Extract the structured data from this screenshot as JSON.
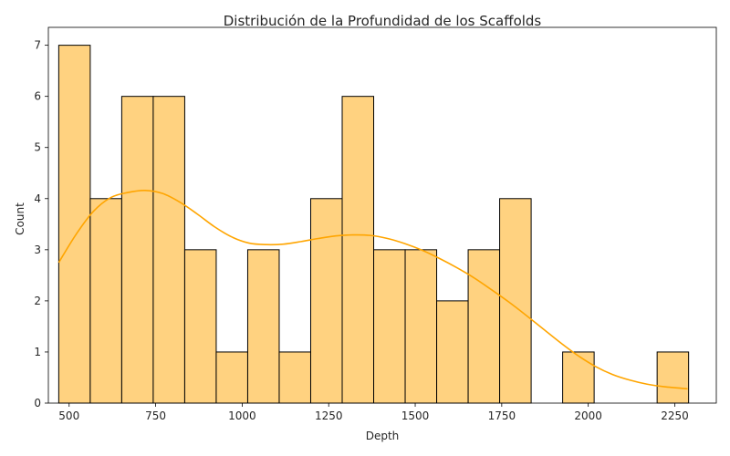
{
  "chart_data": {
    "type": "bar",
    "subtype": "histogram",
    "title": "Distribución de la Profundidad de los Scaffolds",
    "xlabel": "Depth",
    "ylabel": "Count",
    "bin_start": 470,
    "bin_width": 91,
    "counts": [
      7,
      4,
      6,
      6,
      3,
      1,
      3,
      1,
      4,
      6,
      3,
      3,
      2,
      3,
      4,
      0,
      1,
      0,
      0,
      1
    ],
    "xlim": [
      440,
      2370
    ],
    "ylim": [
      0,
      7.35
    ],
    "xticks": [
      500,
      750,
      1000,
      1250,
      1500,
      1750,
      2000,
      2250
    ],
    "yticks": [
      0,
      1,
      2,
      3,
      4,
      5,
      6,
      7
    ],
    "kde": {
      "x": [
        470,
        520,
        570,
        620,
        670,
        720,
        770,
        820,
        870,
        920,
        970,
        1020,
        1070,
        1120,
        1170,
        1220,
        1270,
        1320,
        1370,
        1420,
        1470,
        1520,
        1570,
        1620,
        1670,
        1720,
        1770,
        1820,
        1870,
        1920,
        1970,
        2020,
        2070,
        2120,
        2170,
        2220,
        2287
      ],
      "y": [
        2.75,
        3.3,
        3.75,
        4.02,
        4.12,
        4.16,
        4.1,
        3.93,
        3.7,
        3.45,
        3.25,
        3.13,
        3.1,
        3.11,
        3.16,
        3.22,
        3.27,
        3.29,
        3.28,
        3.22,
        3.12,
        2.99,
        2.83,
        2.65,
        2.45,
        2.22,
        1.98,
        1.72,
        1.45,
        1.18,
        0.93,
        0.72,
        0.56,
        0.45,
        0.37,
        0.32,
        0.28
      ]
    },
    "bar_color": "#ffd280",
    "bar_edge_color": "#000000",
    "kde_color": "#ffa500",
    "grid": false,
    "legend": "none"
  }
}
